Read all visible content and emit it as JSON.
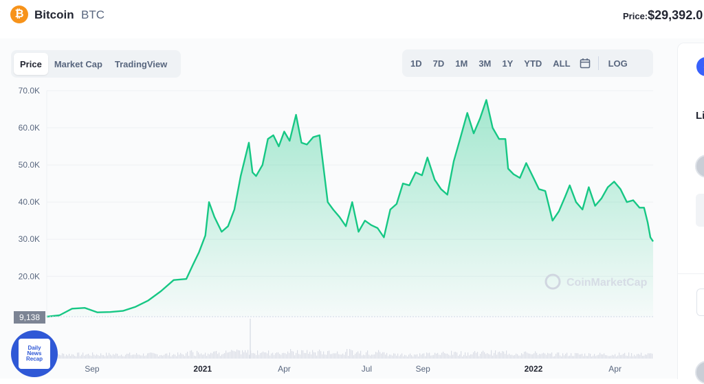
{
  "header": {
    "coin_logo": "₿",
    "coin_name": "Bitcoin",
    "coin_symbol": "BTC",
    "price_label": "Price:",
    "price_value": "$29,392.0"
  },
  "tabs": [
    "Price",
    "Market Cap",
    "TradingView"
  ],
  "active_tab": "Price",
  "ranges": [
    "1D",
    "7D",
    "1M",
    "3M",
    "1Y",
    "YTD",
    "ALL"
  ],
  "log_label": "LOG",
  "icons": {
    "calendar": "calendar-icon",
    "watermark": "coinmarketcap-logo",
    "news": "daily-news-recap-logo"
  },
  "colors": {
    "line": "#16c784",
    "accent": "#3861fb",
    "coin": "#f7931a"
  },
  "watermark": "CoinMarketCap",
  "news_badge": [
    "Daily",
    "News",
    "Recap"
  ],
  "side": {
    "text": "Li"
  },
  "chart_data": {
    "type": "area",
    "y_tick_labels": [
      "70.0K",
      "60.0K",
      "50.0K",
      "40.0K",
      "30.0K",
      "20.0K"
    ],
    "y_ticks": [
      70000,
      60000,
      50000,
      40000,
      30000,
      20000
    ],
    "ylim": [
      9138,
      70000
    ],
    "start_label": "9,138",
    "x_tick_labels": [
      "Sep",
      "2021",
      "Apr",
      "Jul",
      "Sep",
      "2022",
      "Apr"
    ],
    "x_ticks": [
      "2020-09-01",
      "2021-01-01",
      "2021-04-01",
      "2021-07-01",
      "2021-09-01",
      "2022-01-01",
      "2022-04-01"
    ],
    "xlim": [
      "2020-07-13",
      "2022-05-13"
    ],
    "grid": true,
    "series": [
      {
        "x": [
          "2020-07-13",
          "2020-07-27",
          "2020-08-10",
          "2020-08-24",
          "2020-09-07",
          "2020-09-21",
          "2020-10-05",
          "2020-10-19",
          "2020-11-02",
          "2020-11-16",
          "2020-11-30",
          "2020-12-14",
          "2020-12-21",
          "2020-12-28",
          "2021-01-04",
          "2021-01-08",
          "2021-01-14",
          "2021-01-22",
          "2021-01-29",
          "2021-02-05",
          "2021-02-12",
          "2021-02-17",
          "2021-02-21",
          "2021-02-25",
          "2021-03-01",
          "2021-03-08",
          "2021-03-14",
          "2021-03-20",
          "2021-03-26",
          "2021-04-01",
          "2021-04-07",
          "2021-04-14",
          "2021-04-20",
          "2021-04-26",
          "2021-05-03",
          "2021-05-10",
          "2021-05-14",
          "2021-05-19",
          "2021-05-25",
          "2021-06-01",
          "2021-06-08",
          "2021-06-15",
          "2021-06-22",
          "2021-06-29",
          "2021-07-06",
          "2021-07-13",
          "2021-07-20",
          "2021-07-27",
          "2021-08-03",
          "2021-08-10",
          "2021-08-17",
          "2021-08-24",
          "2021-08-31",
          "2021-09-06",
          "2021-09-14",
          "2021-09-21",
          "2021-09-28",
          "2021-10-05",
          "2021-10-12",
          "2021-10-20",
          "2021-10-27",
          "2021-11-03",
          "2021-11-10",
          "2021-11-17",
          "2021-11-24",
          "2021-12-01",
          "2021-12-04",
          "2021-12-10",
          "2021-12-17",
          "2021-12-24",
          "2021-12-31",
          "2022-01-07",
          "2022-01-14",
          "2022-01-22",
          "2022-01-29",
          "2022-02-05",
          "2022-02-10",
          "2022-02-17",
          "2022-02-24",
          "2022-03-03",
          "2022-03-10",
          "2022-03-17",
          "2022-03-24",
          "2022-03-31",
          "2022-04-07",
          "2022-04-14",
          "2022-04-21",
          "2022-04-28",
          "2022-05-03",
          "2022-05-07",
          "2022-05-10",
          "2022-05-13"
        ],
        "y": [
          9138,
          9500,
          11300,
          11500,
          10300,
          10400,
          10700,
          11800,
          13500,
          16000,
          19000,
          19300,
          23000,
          26500,
          31000,
          40000,
          36000,
          32000,
          33500,
          38000,
          47000,
          52000,
          56000,
          48000,
          47000,
          50000,
          57000,
          58000,
          55000,
          59000,
          56500,
          63500,
          56000,
          55500,
          57500,
          58000,
          50000,
          40000,
          38000,
          36000,
          33500,
          40000,
          32000,
          35000,
          33800,
          33000,
          30500,
          38000,
          39500,
          45000,
          44500,
          48000,
          47200,
          52000,
          46000,
          43500,
          42000,
          51000,
          57000,
          64000,
          58500,
          62500,
          67500,
          60000,
          57000,
          57000,
          49000,
          47500,
          46500,
          50500,
          47000,
          43500,
          43000,
          35000,
          37500,
          41500,
          44500,
          40000,
          38000,
          44000,
          39000,
          41000,
          44000,
          45500,
          43500,
          40000,
          40500,
          38500,
          38500,
          34500,
          30500,
          29392
        ]
      }
    ],
    "volume": true
  }
}
